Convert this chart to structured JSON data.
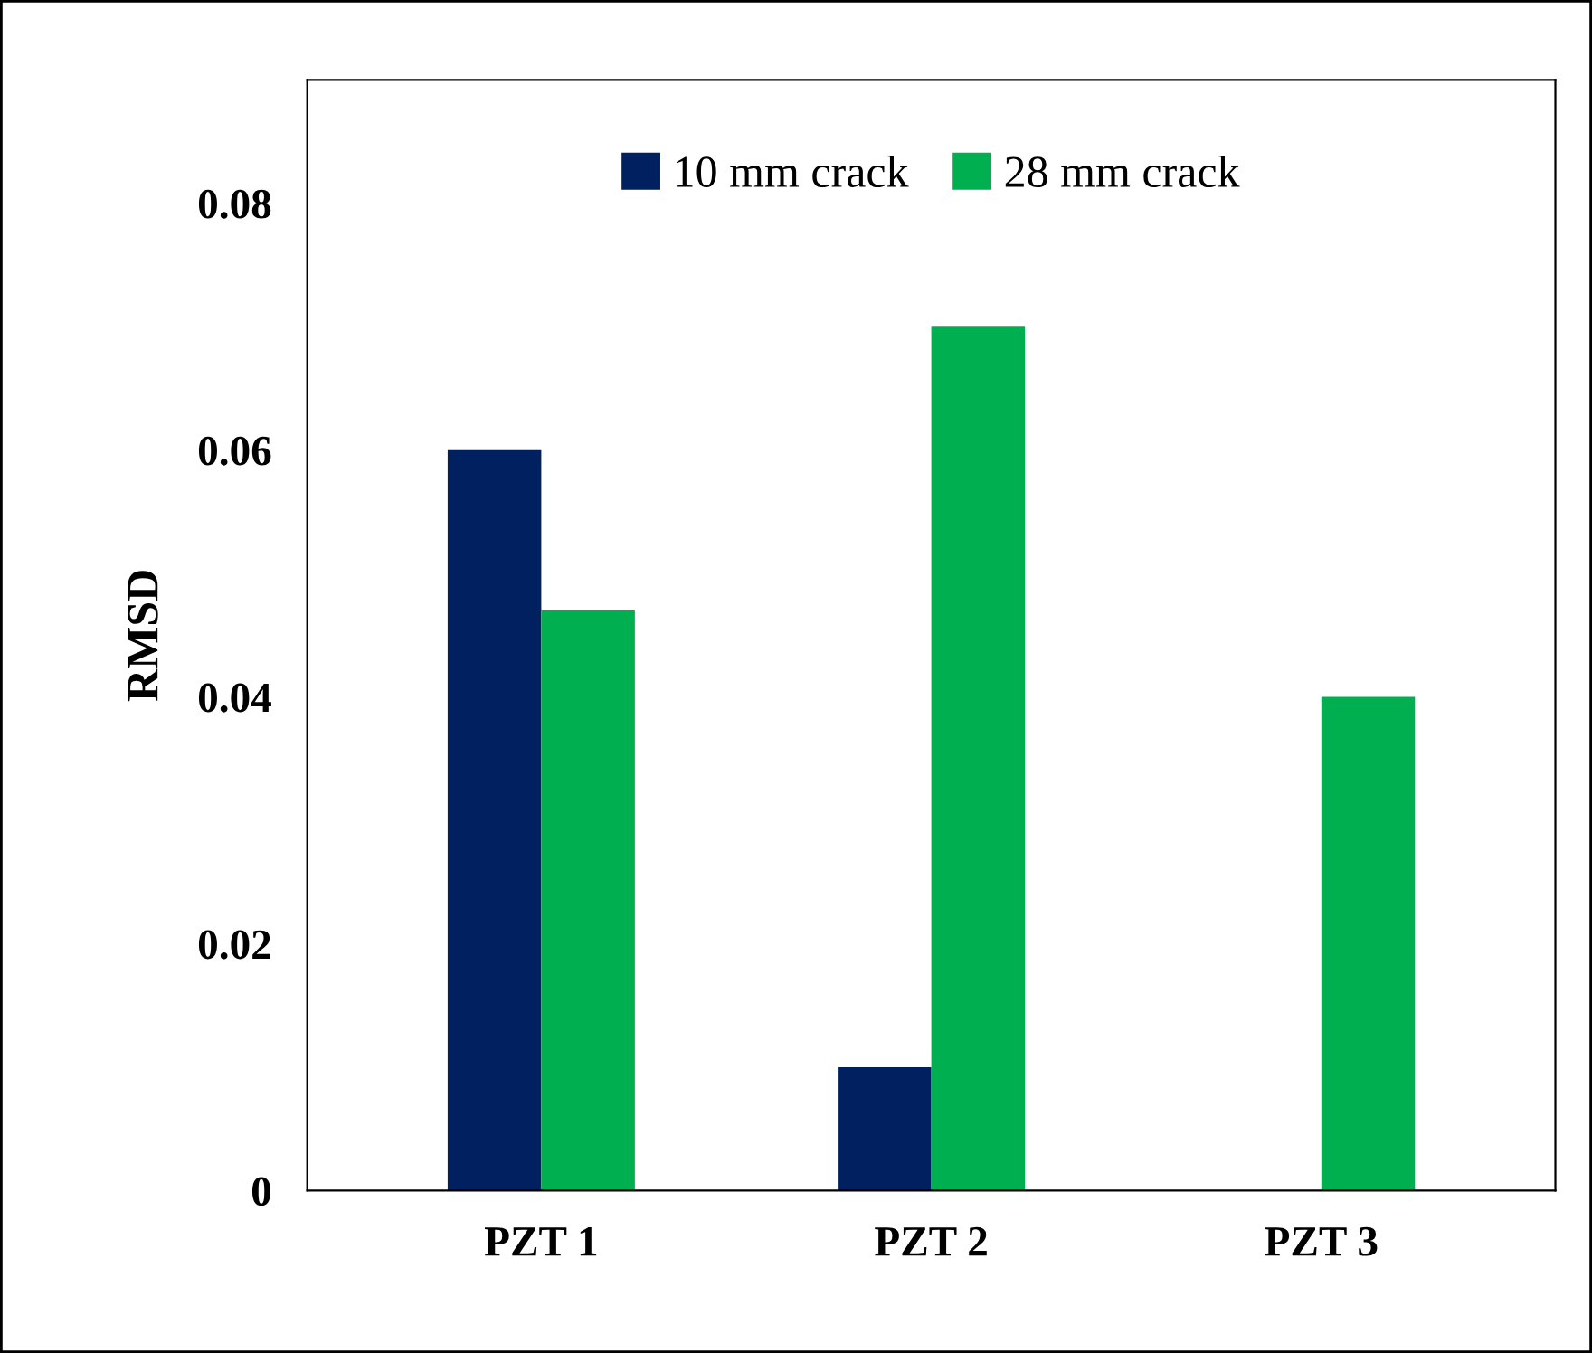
{
  "chart_data": {
    "type": "bar",
    "ylabel": "RMSD",
    "categories": [
      "PZT 1",
      "PZT 2",
      "PZT 3"
    ],
    "series": [
      {
        "name": "10 mm crack",
        "color": "#002060",
        "values": [
          0.06,
          0.01,
          0
        ]
      },
      {
        "name": "28 mm crack",
        "color": "#00b050",
        "values": [
          0.047,
          0.07,
          0.04
        ]
      }
    ],
    "ylim": [
      0,
      0.09
    ],
    "yticks": [
      {
        "value": 0,
        "label": "0"
      },
      0.02,
      0.04,
      0.06,
      0.08
    ],
    "grid": false,
    "legend": "top"
  }
}
